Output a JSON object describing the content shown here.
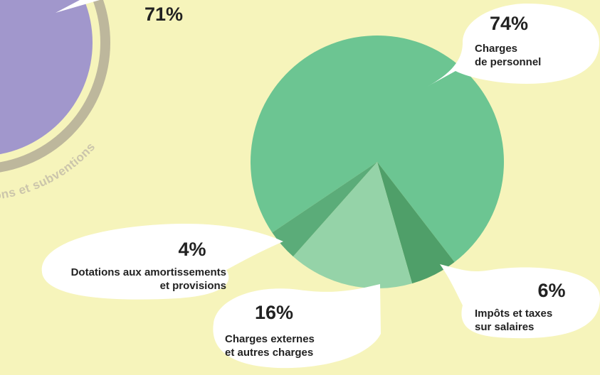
{
  "chart_data": [
    {
      "type": "circle",
      "categories": [
        "ons et subventions"
      ],
      "values": [
        71
      ],
      "value_labels": [
        "71%"
      ],
      "color": "#a197cc",
      "ring_color": "#bdb79c",
      "label_color": "#cbc5ab"
    },
    {
      "type": "pie",
      "categories": [
        [
          "Charges",
          "de personnel"
        ],
        [
          "Impôts et taxes",
          "sur salaires"
        ],
        [
          "Charges externes",
          "et autres charges"
        ],
        [
          "Dotations aux amortissements",
          "et provisions"
        ]
      ],
      "values": [
        74,
        6,
        16,
        4
      ],
      "value_labels": [
        "74%",
        "6%",
        "16%",
        "4%"
      ],
      "colors": [
        "#6cc592",
        "#4f9f69",
        "#95d3a8",
        "#5bac79"
      ]
    }
  ]
}
